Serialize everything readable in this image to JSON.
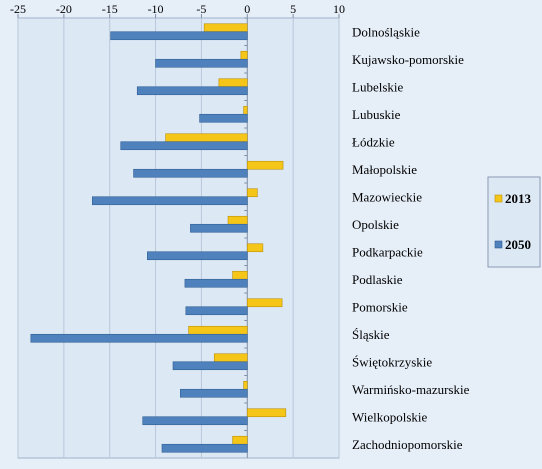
{
  "chart_data": {
    "type": "bar",
    "orientation": "horizontal",
    "categories": [
      "Dolnośląskie",
      "Kujawsko-pomorskie",
      "Lubelskie",
      "Lubuskie",
      "Łódzkie",
      "Małopolskie",
      "Mazowieckie",
      "Opolskie",
      "Podkarpackie",
      "Podlaskie",
      "Pomorskie",
      "Śląskie",
      "Świętokrzyskie",
      "Warmińsko-mazurskie",
      "Wielkopolskie",
      "Zachodniopomorskie"
    ],
    "series": [
      {
        "name": "2013",
        "color": "#f5c518",
        "values": [
          -4.7,
          -0.7,
          -3.1,
          -0.4,
          -8.9,
          3.9,
          1.1,
          -2.1,
          1.7,
          -1.6,
          3.8,
          -6.4,
          -3.6,
          -0.4,
          4.2,
          -1.6
        ]
      },
      {
        "name": "2050",
        "color": "#4f81bd",
        "values": [
          -14.9,
          -10.0,
          -12.0,
          -5.2,
          -13.8,
          -12.4,
          -16.9,
          -6.2,
          -10.9,
          -6.8,
          -6.7,
          -23.6,
          -8.1,
          -7.3,
          -11.4,
          -9.3
        ]
      }
    ],
    "xlim": [
      -25,
      10
    ],
    "xticks": [
      "-25",
      "-20",
      "-15",
      "-10",
      "-5",
      "0",
      "5",
      "10"
    ],
    "grid": "vertical",
    "legend_position": "right",
    "title": "",
    "xlabel": "",
    "ylabel": ""
  }
}
